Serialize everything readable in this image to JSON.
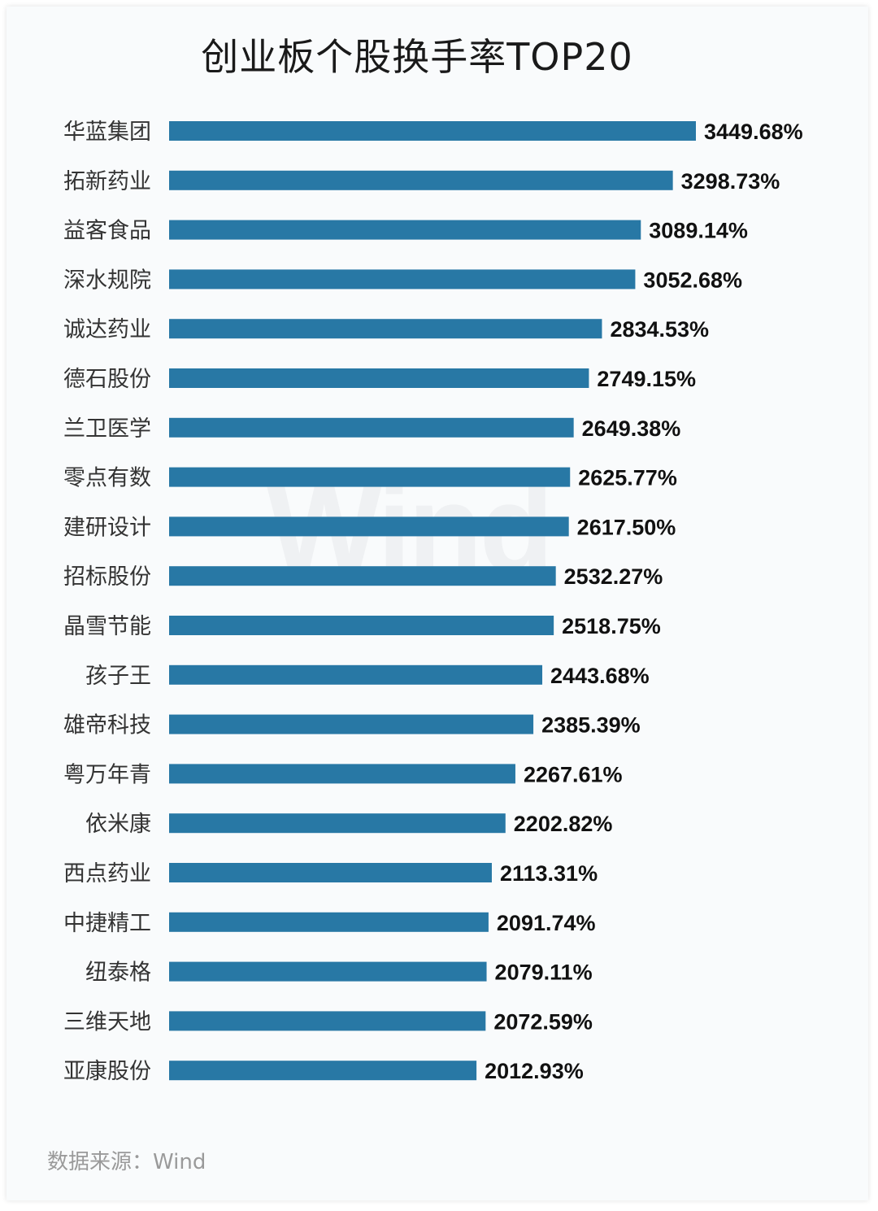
{
  "chart_data": {
    "type": "bar",
    "orientation": "horizontal",
    "title": "创业板个股换手率TOP20",
    "categories": [
      "华蓝集团",
      "拓新药业",
      "益客食品",
      "深水规院",
      "诚达药业",
      "德石股份",
      "兰卫医学",
      "零点有数",
      "建研设计",
      "招标股份",
      "晶雪节能",
      "孩子王",
      "雄帝科技",
      "粤万年青",
      "依米康",
      "西点药业",
      "中捷精工",
      "纽泰格",
      "三维天地",
      "亚康股份"
    ],
    "values": [
      3449.68,
      3298.73,
      3089.14,
      3052.68,
      2834.53,
      2749.15,
      2649.38,
      2625.77,
      2617.5,
      2532.27,
      2518.75,
      2443.68,
      2385.39,
      2267.61,
      2202.82,
      2113.31,
      2091.74,
      2079.11,
      2072.59,
      2012.93
    ],
    "value_labels": [
      "3449.68%",
      "3298.73%",
      "3089.14%",
      "3052.68%",
      "2834.53%",
      "2749.15%",
      "2649.38%",
      "2625.77%",
      "2617.50%",
      "2532.27%",
      "2518.75%",
      "2443.68%",
      "2385.39%",
      "2267.61%",
      "2202.82%",
      "2113.31%",
      "2091.74%",
      "2079.11%",
      "2072.59%",
      "2012.93%"
    ],
    "unit": "%",
    "xlim": [
      0,
      3449.68
    ],
    "grid": false,
    "bar_color": "#2878a5"
  },
  "watermark": "Wind",
  "source": "数据来源：Wind"
}
